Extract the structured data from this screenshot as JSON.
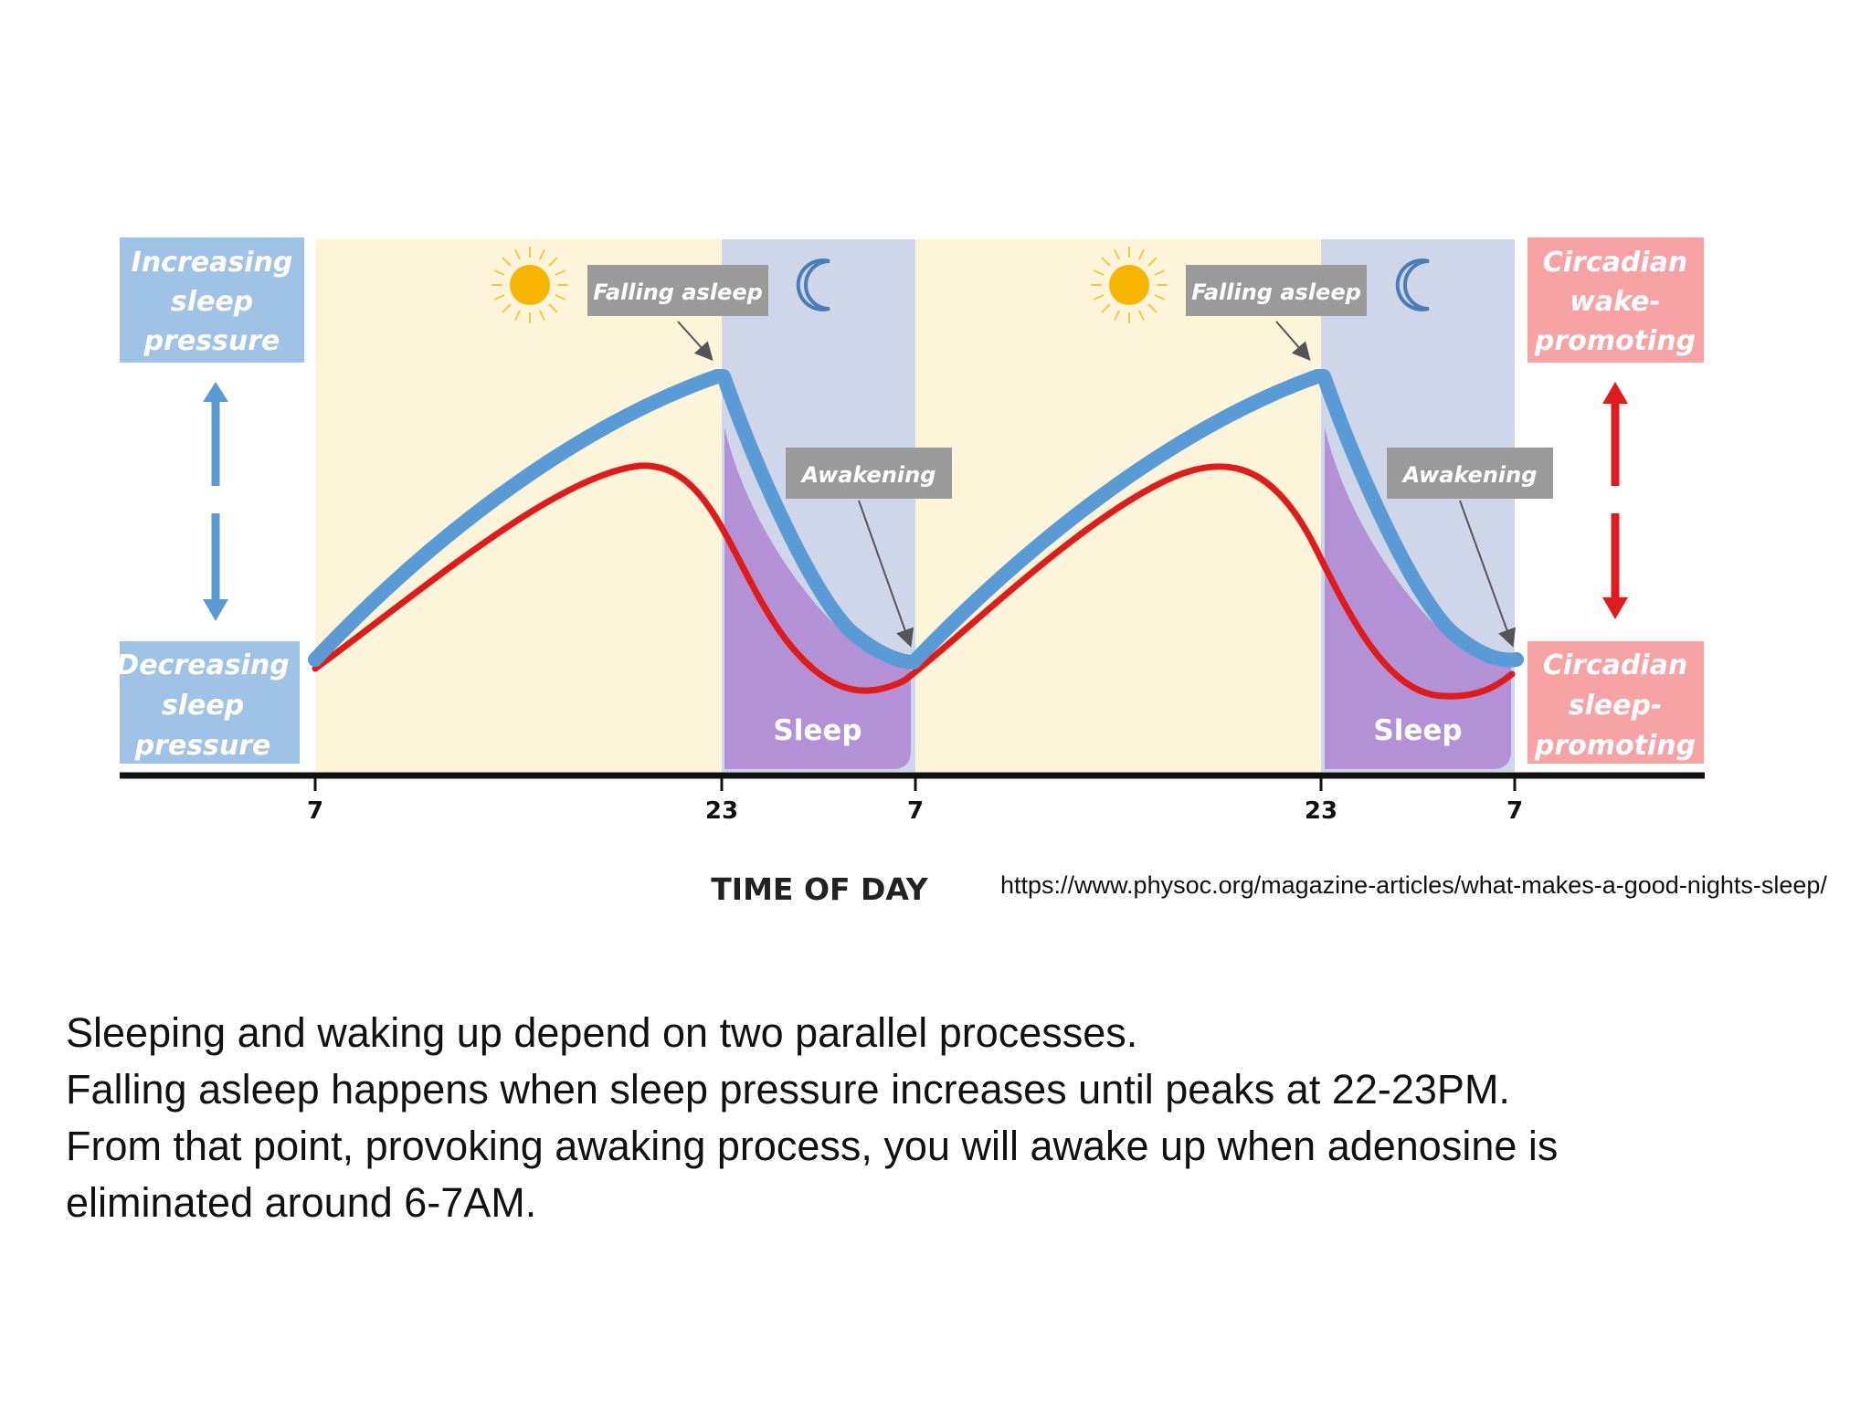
{
  "diagram": {
    "left_top_label": [
      "Increasing",
      "sleep",
      "pressure"
    ],
    "left_bottom_label": [
      "Decreasing",
      "sleep",
      "pressure"
    ],
    "right_top_label": [
      "Circadian",
      "wake-",
      "promoting"
    ],
    "right_bottom_label": [
      "Circadian",
      "sleep-",
      "promoting"
    ],
    "callout_falling": "Falling asleep",
    "callout_awakening": "Awakening",
    "sleep_label": "Sleep",
    "x_ticks": [
      "7",
      "23",
      "7",
      "23",
      "7"
    ],
    "x_axis_title": "TIME OF DAY",
    "colors": {
      "day_bg": "#fcf5da",
      "night_bg": "#cfd6ea",
      "sleep_fill": "#b291d6",
      "sleep_pressure_curve": "#5b9bd5",
      "circadian_curve": "#e01b1b",
      "blue_box": "#9fc3e6",
      "red_box": "#f7a3a3",
      "callout_box": "#9a9a9a"
    },
    "icons": [
      "sun-icon",
      "moon-icon"
    ]
  },
  "source_url": "https://www.physoc.org/magazine-articles/what-makes-a-good-nights-sleep/",
  "caption": [
    "Sleeping and waking up depend on two parallel processes.",
    "Falling asleep happens when sleep pressure increases until peaks at 22-23PM.",
    "From that point, provoking awaking process, you will awake up when adenosine is",
    "eliminated around 6-7AM."
  ]
}
